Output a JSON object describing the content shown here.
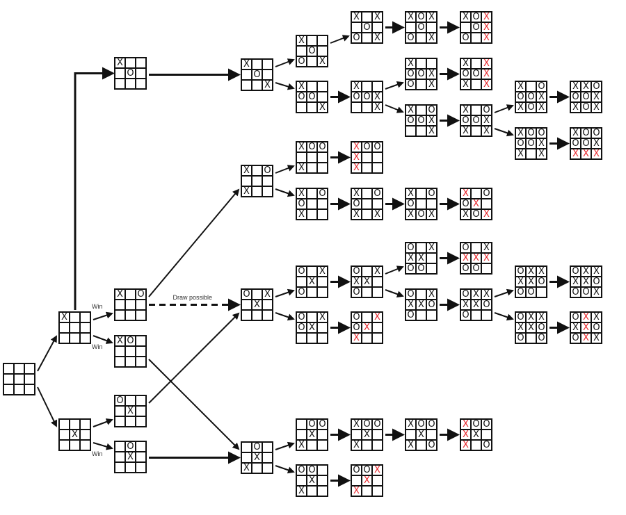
{
  "colors": {
    "line": "#111111",
    "win_mark": "#e8262b"
  },
  "boards": [
    {
      "id": "root",
      "cells": [
        "",
        "",
        "",
        "",
        "",
        "",
        "",
        "",
        ""
      ],
      "win": []
    },
    {
      "id": "a1",
      "cells": [
        "X",
        "",
        "",
        "",
        "",
        "",
        "",
        "",
        ""
      ],
      "win": []
    },
    {
      "id": "b1",
      "cells": [
        "",
        "",
        "",
        "",
        "X",
        "",
        "",
        "",
        ""
      ],
      "win": []
    },
    {
      "id": "c1",
      "cells": [
        "X",
        "",
        "",
        "",
        "O",
        "",
        "",
        "",
        ""
      ],
      "win": []
    },
    {
      "id": "c2",
      "cells": [
        "X",
        "",
        "O",
        "",
        "",
        "",
        "",
        "",
        ""
      ],
      "win": []
    },
    {
      "id": "c3",
      "cells": [
        "X",
        "O",
        "",
        "",
        "",
        "",
        "",
        "",
        ""
      ],
      "win": []
    },
    {
      "id": "c4",
      "cells": [
        "O",
        "",
        "",
        "",
        "X",
        "",
        "",
        "",
        ""
      ],
      "win": []
    },
    {
      "id": "c5",
      "cells": [
        "",
        "O",
        "",
        "",
        "X",
        "",
        "",
        "",
        ""
      ],
      "win": []
    },
    {
      "id": "A",
      "cells": [
        "X",
        "",
        "",
        "",
        "O",
        "",
        "",
        "",
        "X"
      ],
      "win": []
    },
    {
      "id": "B",
      "cells": [
        "X",
        "",
        "O",
        "",
        "",
        "",
        "X",
        "",
        ""
      ],
      "win": []
    },
    {
      "id": "C",
      "cells": [
        "O",
        "",
        "X",
        "",
        "X",
        "",
        "",
        "",
        ""
      ],
      "win": []
    },
    {
      "id": "D",
      "cells": [
        "",
        "O",
        "",
        "",
        "X",
        "",
        "X",
        "",
        ""
      ],
      "win": []
    },
    {
      "id": "A1",
      "cells": [
        "X",
        "",
        "",
        "",
        "O",
        "",
        "O",
        "",
        "X"
      ],
      "win": []
    },
    {
      "id": "A2",
      "cells": [
        "X",
        "",
        "",
        "O",
        "O",
        "",
        "",
        "",
        "X"
      ],
      "win": []
    },
    {
      "id": "B1",
      "cells": [
        "X",
        "O",
        "O",
        "",
        "",
        "",
        "X",
        "",
        ""
      ],
      "win": []
    },
    {
      "id": "B2",
      "cells": [
        "X",
        "",
        "O",
        "O",
        "",
        "",
        "X",
        "",
        ""
      ],
      "win": []
    },
    {
      "id": "C1",
      "cells": [
        "O",
        "",
        "X",
        "",
        "X",
        "",
        "O",
        "",
        ""
      ],
      "win": []
    },
    {
      "id": "C2",
      "cells": [
        "O",
        "",
        "X",
        "O",
        "X",
        "",
        "",
        "",
        ""
      ],
      "win": []
    },
    {
      "id": "D1",
      "cells": [
        "",
        "O",
        "O",
        "",
        "X",
        "",
        "X",
        "",
        ""
      ],
      "win": []
    },
    {
      "id": "D2",
      "cells": [
        "O",
        "O",
        "",
        "",
        "X",
        "",
        "X",
        "",
        ""
      ],
      "win": []
    },
    {
      "id": "A1a",
      "cells": [
        "X",
        "",
        "X",
        "",
        "O",
        "",
        "O",
        "",
        "X"
      ],
      "win": []
    },
    {
      "id": "A2a",
      "cells": [
        "X",
        "",
        "",
        "O",
        "O",
        "X",
        "",
        "",
        "X"
      ],
      "win": []
    },
    {
      "id": "B1a",
      "cells": [
        "X",
        "O",
        "O",
        "X",
        "",
        "",
        "X",
        "",
        ""
      ],
      "win": [
        0,
        3,
        6
      ]
    },
    {
      "id": "B2a",
      "cells": [
        "X",
        "",
        "O",
        "O",
        "",
        "",
        "X",
        "",
        "X"
      ],
      "win": []
    },
    {
      "id": "C1a",
      "cells": [
        "O",
        "",
        "X",
        "X",
        "X",
        "",
        "O",
        "",
        ""
      ],
      "win": []
    },
    {
      "id": "C2a",
      "cells": [
        "O",
        "",
        "X",
        "O",
        "X",
        "",
        "X",
        "",
        ""
      ],
      "win": [
        2,
        4,
        6
      ]
    },
    {
      "id": "D1a",
      "cells": [
        "X",
        "O",
        "O",
        "",
        "X",
        "",
        "X",
        "",
        ""
      ],
      "win": []
    },
    {
      "id": "D2a",
      "cells": [
        "O",
        "O",
        "X",
        "",
        "X",
        "",
        "X",
        "",
        ""
      ],
      "win": [
        2,
        4,
        6
      ]
    },
    {
      "id": "A1b",
      "cells": [
        "X",
        "O",
        "X",
        "",
        "O",
        "",
        "O",
        "",
        "X"
      ],
      "win": []
    },
    {
      "id": "A2b1",
      "cells": [
        "X",
        "",
        "",
        "O",
        "O",
        "X",
        "O",
        "",
        "X"
      ],
      "win": []
    },
    {
      "id": "A2b2",
      "cells": [
        "X",
        "",
        "O",
        "O",
        "O",
        "X",
        "",
        "",
        "X"
      ],
      "win": []
    },
    {
      "id": "B2b",
      "cells": [
        "X",
        "",
        "O",
        "O",
        "",
        "",
        "X",
        "O",
        "X"
      ],
      "win": []
    },
    {
      "id": "C1b1",
      "cells": [
        "O",
        "",
        "X",
        "X",
        "X",
        "",
        "O",
        "O",
        ""
      ],
      "win": []
    },
    {
      "id": "C1b2",
      "cells": [
        "O",
        "",
        "X",
        "X",
        "X",
        "O",
        "O",
        "",
        ""
      ],
      "win": []
    },
    {
      "id": "D1b",
      "cells": [
        "X",
        "O",
        "O",
        "",
        "X",
        "",
        "X",
        "",
        "O"
      ],
      "win": []
    },
    {
      "id": "A1c",
      "cells": [
        "X",
        "O",
        "X",
        "",
        "O",
        "X",
        "O",
        "",
        "X"
      ],
      "win": [
        2,
        5,
        8
      ]
    },
    {
      "id": "A2b1c",
      "cells": [
        "X",
        "",
        "X",
        "O",
        "O",
        "X",
        "X",
        "",
        "X"
      ],
      "win": [
        2,
        5,
        8
      ]
    },
    {
      "id": "A2c",
      "cells": [
        "X",
        "",
        "O",
        "O",
        "O",
        "X",
        "X",
        "",
        "X"
      ],
      "win": []
    },
    {
      "id": "B2c",
      "cells": [
        "X",
        "",
        "O",
        "O",
        "X",
        "",
        "X",
        "O",
        "X"
      ],
      "win": [
        0,
        4,
        8
      ]
    },
    {
      "id": "C1c",
      "cells": [
        "O",
        "",
        "X",
        "X",
        "X",
        "X",
        "O",
        "O",
        ""
      ],
      "win": [
        3,
        4,
        5
      ]
    },
    {
      "id": "C2c",
      "cells": [
        "O",
        "X",
        "X",
        "X",
        "X",
        "O",
        "O",
        "",
        ""
      ],
      "win": []
    },
    {
      "id": "D1c",
      "cells": [
        "X",
        "O",
        "O",
        "X",
        "X",
        "",
        "X",
        "",
        "O"
      ],
      "win": [
        0,
        3,
        6
      ]
    },
    {
      "id": "A2d1",
      "cells": [
        "X",
        "",
        "O",
        "O",
        "O",
        "X",
        "X",
        "O",
        "X"
      ],
      "win": []
    },
    {
      "id": "A2d2",
      "cells": [
        "X",
        "O",
        "O",
        "O",
        "O",
        "X",
        "X",
        "",
        "X"
      ],
      "win": []
    },
    {
      "id": "C2d1",
      "cells": [
        "O",
        "X",
        "X",
        "X",
        "X",
        "O",
        "O",
        "O",
        ""
      ],
      "win": []
    },
    {
      "id": "C2d2",
      "cells": [
        "O",
        "X",
        "X",
        "X",
        "X",
        "O",
        "O",
        "",
        "O"
      ],
      "win": []
    },
    {
      "id": "A2e1",
      "cells": [
        "X",
        "X",
        "O",
        "O",
        "O",
        "X",
        "X",
        "O",
        "X"
      ],
      "win": []
    },
    {
      "id": "A2e2",
      "cells": [
        "X",
        "O",
        "O",
        "O",
        "O",
        "X",
        "X",
        "X",
        "X"
      ],
      "win": [
        6,
        7,
        8
      ]
    },
    {
      "id": "C2e1",
      "cells": [
        "O",
        "X",
        "X",
        "X",
        "X",
        "O",
        "O",
        "O",
        "X"
      ],
      "win": []
    },
    {
      "id": "C2e2",
      "cells": [
        "O",
        "X",
        "X",
        "X",
        "X",
        "O",
        "O",
        "X",
        "X"
      ],
      "win": [
        1,
        4,
        7
      ]
    }
  ],
  "edges": [
    {
      "from": "root",
      "to": "a1"
    },
    {
      "from": "root",
      "to": "b1"
    },
    {
      "from": "a1",
      "to": "c1",
      "style": "elbow"
    },
    {
      "from": "a1",
      "to": "c2",
      "label": "Win"
    },
    {
      "from": "a1",
      "to": "c3",
      "label": "Win"
    },
    {
      "from": "b1",
      "to": "c4"
    },
    {
      "from": "b1",
      "to": "c5",
      "label": "Win"
    },
    {
      "from": "c1",
      "to": "A"
    },
    {
      "from": "c2",
      "to": "B"
    },
    {
      "from": "c2",
      "to": "C",
      "style": "dashed",
      "label": "Draw possible"
    },
    {
      "from": "c3",
      "to": "D"
    },
    {
      "from": "c4",
      "to": "C"
    },
    {
      "from": "c5",
      "to": "D"
    },
    {
      "from": "A",
      "to": "A1"
    },
    {
      "from": "A",
      "to": "A2"
    },
    {
      "from": "A1",
      "to": "A1a"
    },
    {
      "from": "A1a",
      "to": "A1b"
    },
    {
      "from": "A1b",
      "to": "A1c"
    },
    {
      "from": "A2",
      "to": "A2a"
    },
    {
      "from": "A2a",
      "to": "A2b1"
    },
    {
      "from": "A2a",
      "to": "A2b2"
    },
    {
      "from": "A2b1",
      "to": "A2b1c"
    },
    {
      "from": "A2b2",
      "to": "A2c"
    },
    {
      "from": "A2c",
      "to": "A2d1"
    },
    {
      "from": "A2c",
      "to": "A2d2"
    },
    {
      "from": "A2d1",
      "to": "A2e1"
    },
    {
      "from": "A2d2",
      "to": "A2e2"
    },
    {
      "from": "B",
      "to": "B1"
    },
    {
      "from": "B",
      "to": "B2"
    },
    {
      "from": "B1",
      "to": "B1a"
    },
    {
      "from": "B2",
      "to": "B2a"
    },
    {
      "from": "B2a",
      "to": "B2b"
    },
    {
      "from": "B2b",
      "to": "B2c"
    },
    {
      "from": "C",
      "to": "C1"
    },
    {
      "from": "C",
      "to": "C2"
    },
    {
      "from": "C1",
      "to": "C1a"
    },
    {
      "from": "C1a",
      "to": "C1b1"
    },
    {
      "from": "C1a",
      "to": "C1b2"
    },
    {
      "from": "C1b1",
      "to": "C1c"
    },
    {
      "from": "C1b2",
      "to": "C2c"
    },
    {
      "from": "C2c",
      "to": "C2d1"
    },
    {
      "from": "C2c",
      "to": "C2d2"
    },
    {
      "from": "C2d1",
      "to": "C2e1"
    },
    {
      "from": "C2d2",
      "to": "C2e2"
    },
    {
      "from": "C2",
      "to": "C2a"
    },
    {
      "from": "D",
      "to": "D1"
    },
    {
      "from": "D",
      "to": "D2"
    },
    {
      "from": "D1",
      "to": "D1a"
    },
    {
      "from": "D1a",
      "to": "D1b"
    },
    {
      "from": "D1b",
      "to": "D1c"
    },
    {
      "from": "D2",
      "to": "D2a"
    }
  ]
}
